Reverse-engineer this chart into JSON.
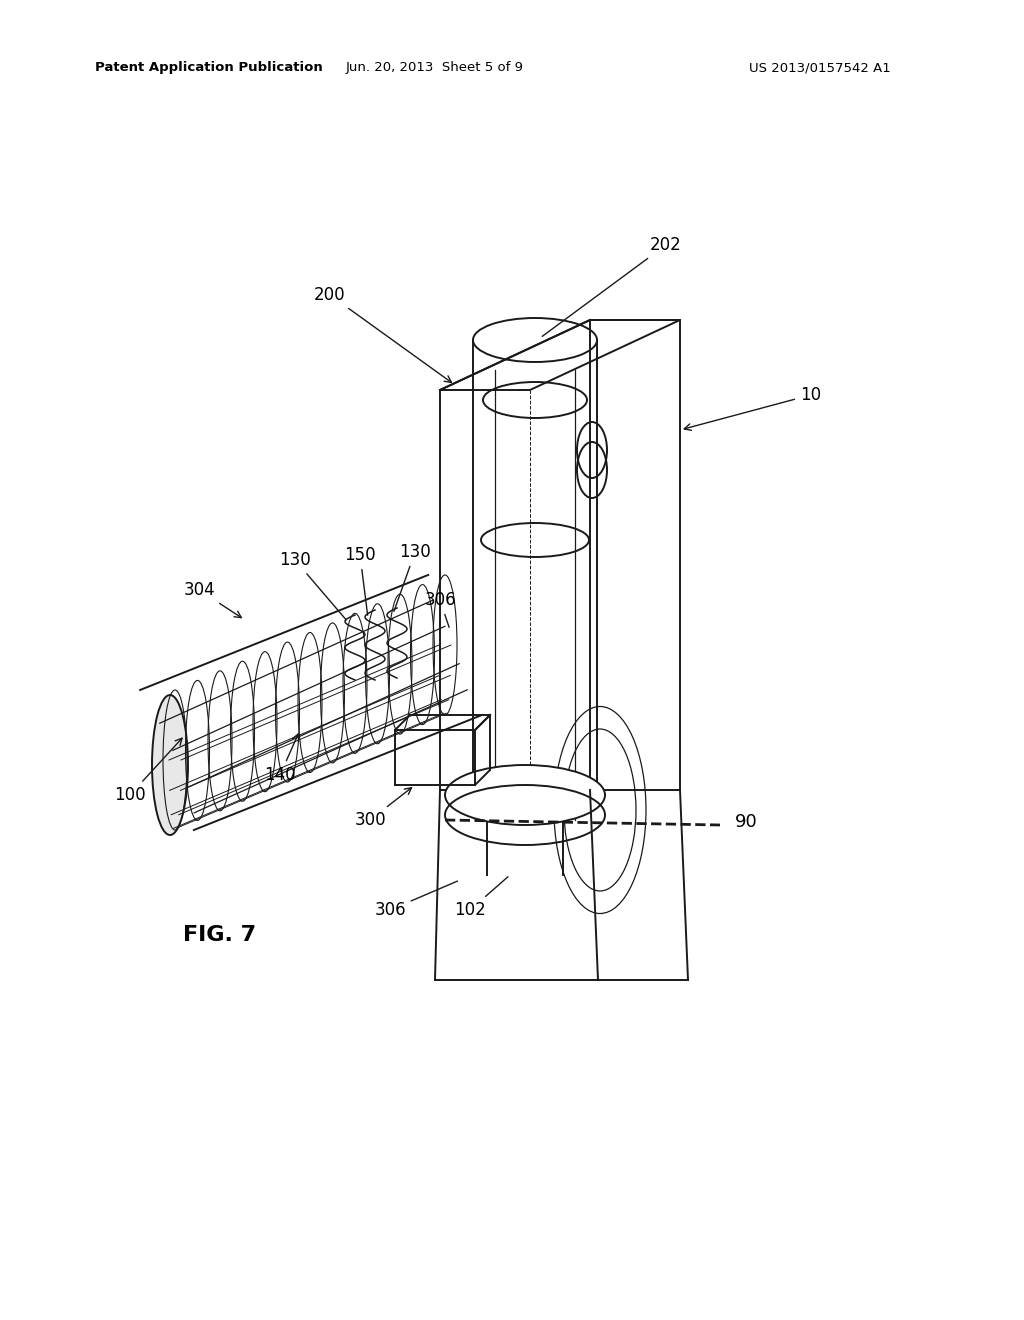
{
  "header_left": "Patent Application Publication",
  "header_mid": "Jun. 20, 2013  Sheet 5 of 9",
  "header_right": "US 2013/0157542 A1",
  "figure_label": "FIG. 7",
  "bg_color": "#ffffff",
  "line_color": "#1a1a1a"
}
